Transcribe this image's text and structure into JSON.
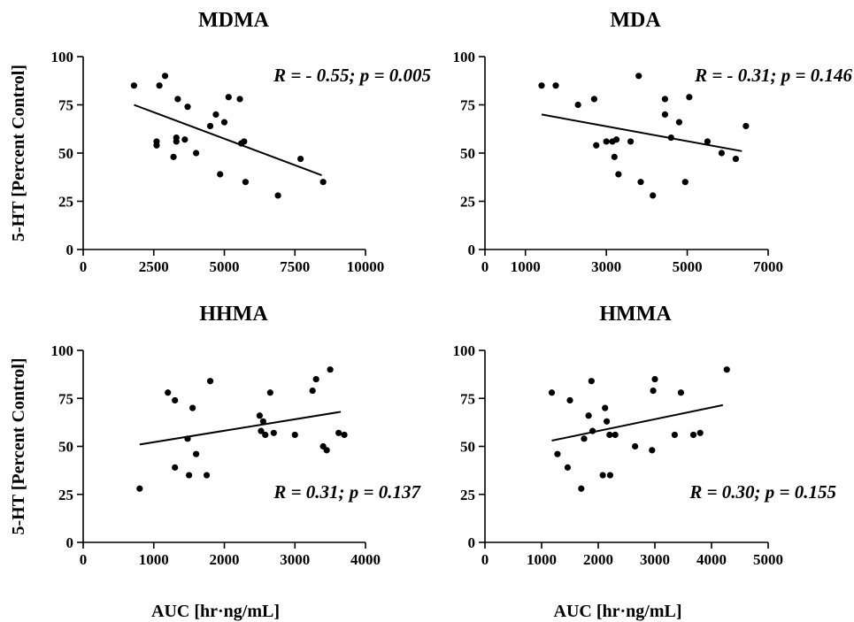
{
  "chart_data": [
    {
      "type": "scatter",
      "title": "MDMA",
      "ylabel": "5-HT [Percent Control]",
      "xlabel": "",
      "annotation": "R = - 0.55; p = 0.005",
      "annotation_position": "top-right",
      "xlim": [
        0,
        10000
      ],
      "ylim": [
        0,
        100
      ],
      "xticks": [
        0,
        2500,
        5000,
        7500,
        10000
      ],
      "xtick_labels": [
        "0",
        "2500",
        "5000",
        "7500",
        "10000"
      ],
      "yticks": [
        0,
        25,
        50,
        75,
        100
      ],
      "ytick_labels": [
        "0",
        "25",
        "50",
        "75",
        "100"
      ],
      "points": [
        {
          "x": 1800,
          "y": 85
        },
        {
          "x": 2600,
          "y": 56
        },
        {
          "x": 2600,
          "y": 54
        },
        {
          "x": 2700,
          "y": 85
        },
        {
          "x": 2900,
          "y": 90
        },
        {
          "x": 3200,
          "y": 48
        },
        {
          "x": 3300,
          "y": 58
        },
        {
          "x": 3300,
          "y": 56
        },
        {
          "x": 3350,
          "y": 78
        },
        {
          "x": 3600,
          "y": 57
        },
        {
          "x": 3700,
          "y": 74
        },
        {
          "x": 4000,
          "y": 50
        },
        {
          "x": 4500,
          "y": 64
        },
        {
          "x": 4700,
          "y": 70
        },
        {
          "x": 4850,
          "y": 39
        },
        {
          "x": 5000,
          "y": 66
        },
        {
          "x": 5150,
          "y": 79
        },
        {
          "x": 5550,
          "y": 78
        },
        {
          "x": 5600,
          "y": 55
        },
        {
          "x": 5700,
          "y": 56
        },
        {
          "x": 5750,
          "y": 35
        },
        {
          "x": 6900,
          "y": 28
        },
        {
          "x": 7700,
          "y": 47
        },
        {
          "x": 8500,
          "y": 35
        }
      ],
      "fit": {
        "x": [
          1800,
          8450
        ],
        "y": [
          75,
          38.5
        ]
      }
    },
    {
      "type": "scatter",
      "title": "MDA",
      "ylabel": "",
      "xlabel": "",
      "annotation": "R = - 0.31; p = 0.146",
      "annotation_position": "top-right",
      "xlim": [
        0,
        7000
      ],
      "ylim": [
        0,
        100
      ],
      "xticks": [
        0,
        1000,
        3000,
        5000,
        7000
      ],
      "xtick_labels": [
        "0",
        "1000",
        "3000",
        "5000",
        "7000"
      ],
      "yticks": [
        0,
        25,
        50,
        75,
        100
      ],
      "ytick_labels": [
        "0",
        "25",
        "50",
        "75",
        "100"
      ],
      "points": [
        {
          "x": 1400,
          "y": 85
        },
        {
          "x": 1750,
          "y": 85
        },
        {
          "x": 2300,
          "y": 75
        },
        {
          "x": 2700,
          "y": 78
        },
        {
          "x": 2750,
          "y": 54
        },
        {
          "x": 3000,
          "y": 56
        },
        {
          "x": 3150,
          "y": 56
        },
        {
          "x": 3200,
          "y": 48
        },
        {
          "x": 3250,
          "y": 57
        },
        {
          "x": 3300,
          "y": 39
        },
        {
          "x": 3600,
          "y": 56
        },
        {
          "x": 3800,
          "y": 90
        },
        {
          "x": 3850,
          "y": 35
        },
        {
          "x": 4150,
          "y": 28
        },
        {
          "x": 4450,
          "y": 78
        },
        {
          "x": 4450,
          "y": 70
        },
        {
          "x": 4600,
          "y": 58
        },
        {
          "x": 4800,
          "y": 66
        },
        {
          "x": 4950,
          "y": 35
        },
        {
          "x": 5050,
          "y": 79
        },
        {
          "x": 5500,
          "y": 56
        },
        {
          "x": 5850,
          "y": 50
        },
        {
          "x": 6200,
          "y": 47
        },
        {
          "x": 6450,
          "y": 64
        }
      ],
      "fit": {
        "x": [
          1400,
          6350
        ],
        "y": [
          70,
          51
        ]
      }
    },
    {
      "type": "scatter",
      "title": "HHMA",
      "ylabel": "5-HT [Percent Control]",
      "xlabel": "AUC [hr·ng/mL]",
      "annotation": "R = 0.31; p = 0.137",
      "annotation_position": "bottom-right",
      "xlim": [
        0,
        4000
      ],
      "ylim": [
        0,
        100
      ],
      "xticks": [
        0,
        1000,
        2000,
        3000,
        4000
      ],
      "xtick_labels": [
        "0",
        "1000",
        "2000",
        "3000",
        "4000"
      ],
      "yticks": [
        0,
        25,
        50,
        75,
        100
      ],
      "ytick_labels": [
        "0",
        "25",
        "50",
        "75",
        "100"
      ],
      "points": [
        {
          "x": 800,
          "y": 28
        },
        {
          "x": 1200,
          "y": 78
        },
        {
          "x": 1300,
          "y": 74
        },
        {
          "x": 1300,
          "y": 39
        },
        {
          "x": 1480,
          "y": 54
        },
        {
          "x": 1500,
          "y": 35
        },
        {
          "x": 1550,
          "y": 70
        },
        {
          "x": 1600,
          "y": 46
        },
        {
          "x": 1750,
          "y": 35
        },
        {
          "x": 1800,
          "y": 84
        },
        {
          "x": 2500,
          "y": 66
        },
        {
          "x": 2520,
          "y": 58
        },
        {
          "x": 2550,
          "y": 63
        },
        {
          "x": 2580,
          "y": 56
        },
        {
          "x": 2650,
          "y": 78
        },
        {
          "x": 2700,
          "y": 57
        },
        {
          "x": 3000,
          "y": 56
        },
        {
          "x": 3250,
          "y": 79
        },
        {
          "x": 3300,
          "y": 85
        },
        {
          "x": 3400,
          "y": 50
        },
        {
          "x": 3450,
          "y": 48
        },
        {
          "x": 3500,
          "y": 90
        },
        {
          "x": 3620,
          "y": 57
        },
        {
          "x": 3700,
          "y": 56
        }
      ],
      "fit": {
        "x": [
          800,
          3650
        ],
        "y": [
          51,
          68
        ]
      }
    },
    {
      "type": "scatter",
      "title": "HMMA",
      "ylabel": "",
      "xlabel": "AUC [hr·ng/mL]",
      "annotation": "R = 0.30; p = 0.155",
      "annotation_position": "bottom-right",
      "xlim": [
        0,
        5000
      ],
      "ylim": [
        0,
        100
      ],
      "xticks": [
        0,
        1000,
        2000,
        3000,
        4000,
        5000
      ],
      "xtick_labels": [
        "0",
        "1000",
        "2000",
        "3000",
        "4000",
        "5000"
      ],
      "yticks": [
        0,
        25,
        50,
        75,
        100
      ],
      "ytick_labels": [
        "0",
        "25",
        "50",
        "75",
        "100"
      ],
      "points": [
        {
          "x": 1180,
          "y": 78
        },
        {
          "x": 1280,
          "y": 46
        },
        {
          "x": 1460,
          "y": 39
        },
        {
          "x": 1500,
          "y": 74
        },
        {
          "x": 1700,
          "y": 28
        },
        {
          "x": 1750,
          "y": 54
        },
        {
          "x": 1830,
          "y": 66
        },
        {
          "x": 1880,
          "y": 84
        },
        {
          "x": 1900,
          "y": 58
        },
        {
          "x": 2080,
          "y": 35
        },
        {
          "x": 2120,
          "y": 70
        },
        {
          "x": 2150,
          "y": 63
        },
        {
          "x": 2200,
          "y": 56
        },
        {
          "x": 2210,
          "y": 35
        },
        {
          "x": 2300,
          "y": 56
        },
        {
          "x": 2650,
          "y": 50
        },
        {
          "x": 2950,
          "y": 48
        },
        {
          "x": 2970,
          "y": 79
        },
        {
          "x": 3000,
          "y": 85
        },
        {
          "x": 3350,
          "y": 56
        },
        {
          "x": 3460,
          "y": 78
        },
        {
          "x": 3680,
          "y": 56
        },
        {
          "x": 3800,
          "y": 57
        },
        {
          "x": 4270,
          "y": 90
        }
      ],
      "fit": {
        "x": [
          1180,
          4200
        ],
        "y": [
          53,
          71.5
        ]
      }
    }
  ]
}
